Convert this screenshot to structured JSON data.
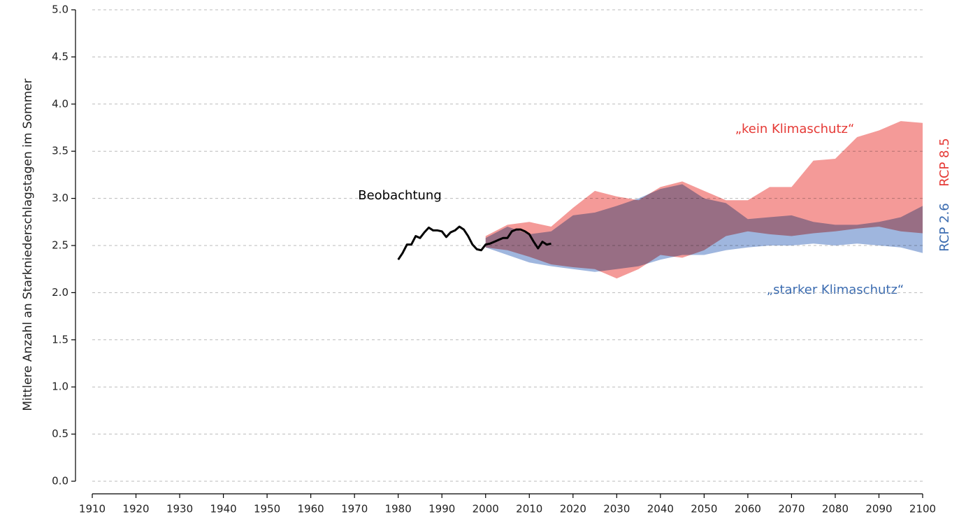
{
  "chart_data": {
    "type": "band-line",
    "ylabel": "Mittlere Anzahl an Starkniederschlagstagen im Sommer",
    "xlim": [
      1910,
      2100
    ],
    "xticks": [
      1910,
      1920,
      1930,
      1940,
      1950,
      1960,
      1970,
      1980,
      1990,
      2000,
      2010,
      2020,
      2030,
      2040,
      2050,
      2060,
      2070,
      2080,
      2090,
      2100
    ],
    "ylim": [
      0,
      5
    ],
    "yticks": [
      {
        "value": 0,
        "label": "0.0"
      },
      0.5,
      {
        "value": 1,
        "label": "1.0"
      },
      1.5,
      {
        "value": 2,
        "label": "2.0"
      },
      2.5,
      {
        "value": 3,
        "label": "3.0"
      },
      3.5,
      {
        "value": 4,
        "label": "4.0"
      },
      4.5,
      {
        "value": 5,
        "label": "5.0"
      }
    ],
    "grid": true,
    "annotations": [
      "„kein Klimaschutz“",
      "„starker Klimaschutz“"
    ],
    "series": [
      {
        "name": "RCP 2.6",
        "kind": "band",
        "color": "#9fb6de",
        "x": [
          2000,
          2005,
          2010,
          2015,
          2020,
          2025,
          2030,
          2035,
          2040,
          2045,
          2050,
          2055,
          2060,
          2065,
          2070,
          2075,
          2080,
          2085,
          2090,
          2095,
          2100
        ],
        "high": [
          2.58,
          2.7,
          2.62,
          2.65,
          2.82,
          2.85,
          2.92,
          3.0,
          3.1,
          3.15,
          3.0,
          2.95,
          2.78,
          2.8,
          2.82,
          2.75,
          2.72,
          2.72,
          2.75,
          2.8,
          2.92
        ],
        "low": [
          2.48,
          2.4,
          2.32,
          2.28,
          2.25,
          2.22,
          2.25,
          2.28,
          2.35,
          2.4,
          2.4,
          2.45,
          2.48,
          2.5,
          2.5,
          2.52,
          2.5,
          2.52,
          2.5,
          2.48,
          2.42
        ]
      },
      {
        "name": "RCP 8.5",
        "kind": "band",
        "color": "#f49a98",
        "x": [
          2000,
          2005,
          2010,
          2015,
          2020,
          2025,
          2030,
          2035,
          2040,
          2045,
          2050,
          2055,
          2060,
          2065,
          2070,
          2075,
          2080,
          2085,
          2090,
          2095,
          2100
        ],
        "high": [
          2.6,
          2.72,
          2.75,
          2.7,
          2.9,
          3.08,
          3.02,
          2.98,
          3.12,
          3.18,
          3.08,
          2.98,
          2.98,
          3.12,
          3.12,
          3.4,
          3.42,
          3.65,
          3.72,
          3.82,
          3.8
        ],
        "low": [
          2.48,
          2.45,
          2.38,
          2.3,
          2.27,
          2.25,
          2.15,
          2.25,
          2.4,
          2.37,
          2.45,
          2.6,
          2.65,
          2.62,
          2.6,
          2.63,
          2.65,
          2.68,
          2.7,
          2.65,
          2.63
        ]
      },
      {
        "name": "Beobachtung",
        "kind": "line",
        "color": "#000000",
        "x": [
          1980,
          1981,
          1982,
          1983,
          1984,
          1985,
          1986,
          1987,
          1988,
          1989,
          1990,
          1991,
          1992,
          1993,
          1994,
          1995,
          1996,
          1997,
          1998,
          1999,
          2000,
          2001,
          2002,
          2003,
          2004,
          2005,
          2006,
          2007,
          2008,
          2009,
          2010,
          2011,
          2012,
          2013,
          2014,
          2015
        ],
        "values": [
          2.35,
          2.42,
          2.51,
          2.51,
          2.6,
          2.58,
          2.64,
          2.69,
          2.66,
          2.66,
          2.65,
          2.59,
          2.64,
          2.66,
          2.7,
          2.67,
          2.6,
          2.51,
          2.46,
          2.45,
          2.51,
          2.52,
          2.54,
          2.56,
          2.58,
          2.58,
          2.65,
          2.67,
          2.67,
          2.65,
          2.62,
          2.54,
          2.47,
          2.54,
          2.51,
          2.52
        ]
      }
    ]
  }
}
